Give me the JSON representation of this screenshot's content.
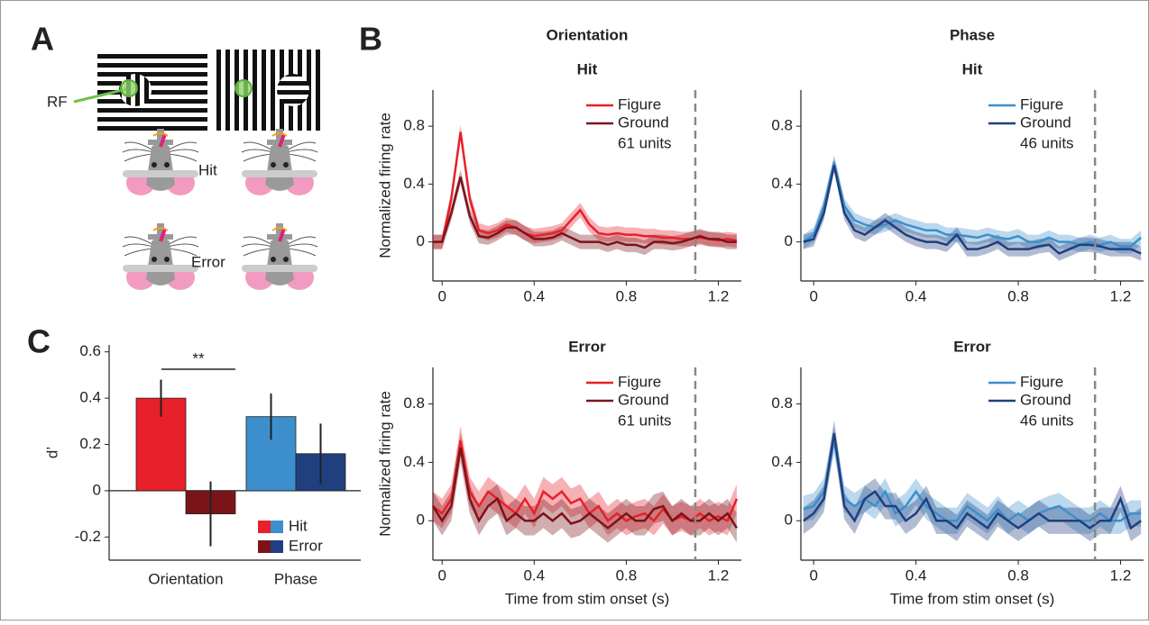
{
  "panel_labels": [
    "A",
    "B",
    "C"
  ],
  "panel_a": {
    "rf_label": "RF",
    "hit_label": "Hit",
    "error_label": "Error"
  },
  "chart_data": [
    {
      "type": "line",
      "super_title": "Orientation",
      "title": "Hit",
      "ylabel": "Normalized firing rate",
      "x": [
        -0.04,
        0,
        0.04,
        0.08,
        0.12,
        0.16,
        0.2,
        0.24,
        0.28,
        0.32,
        0.36,
        0.4,
        0.44,
        0.48,
        0.52,
        0.56,
        0.6,
        0.64,
        0.68,
        0.72,
        0.76,
        0.8,
        0.84,
        0.88,
        0.92,
        0.96,
        1.0,
        1.04,
        1.08,
        1.12,
        1.16,
        1.2,
        1.24,
        1.28
      ],
      "series": [
        {
          "name": "Figure",
          "color": "#e8202a",
          "error": 0.05,
          "values": [
            0,
            0,
            0.3,
            0.76,
            0.3,
            0.08,
            0.06,
            0.08,
            0.12,
            0.1,
            0.06,
            0.04,
            0.05,
            0.06,
            0.08,
            0.15,
            0.22,
            0.12,
            0.06,
            0.05,
            0.06,
            0.05,
            0.05,
            0.04,
            0.04,
            0.03,
            0.03,
            0.02,
            0.02,
            0.03,
            0.02,
            0.01,
            0.02,
            0.01
          ]
        },
        {
          "name": "Ground",
          "color": "#7b1419",
          "error": 0.05,
          "values": [
            0,
            0,
            0.2,
            0.45,
            0.18,
            0.04,
            0.03,
            0.06,
            0.1,
            0.1,
            0.06,
            0.02,
            0.02,
            0.03,
            0.06,
            0.03,
            0,
            0,
            0,
            -0.02,
            0,
            -0.02,
            -0.02,
            -0.04,
            0,
            0,
            -0.01,
            0,
            0.02,
            0.04,
            0.02,
            0.02,
            0,
            0
          ]
        }
      ],
      "annotation": "61 units",
      "legend": "upper right",
      "vline": 1.1,
      "xlim": [
        -0.04,
        1.3
      ],
      "xticks": [
        0,
        0.4,
        0.8,
        1.2
      ],
      "ylim": [
        -0.27,
        1.05
      ],
      "yticks": [
        0,
        0.4,
        0.8
      ]
    },
    {
      "type": "line",
      "super_title": "Phase",
      "title": "Hit",
      "x": [
        -0.04,
        0,
        0.04,
        0.08,
        0.12,
        0.16,
        0.2,
        0.24,
        0.28,
        0.32,
        0.36,
        0.4,
        0.44,
        0.48,
        0.52,
        0.56,
        0.6,
        0.64,
        0.68,
        0.72,
        0.76,
        0.8,
        0.84,
        0.88,
        0.92,
        0.96,
        1.0,
        1.04,
        1.08,
        1.12,
        1.16,
        1.2,
        1.24,
        1.28
      ],
      "series": [
        {
          "name": "Figure",
          "color": "#3c8fcc",
          "error": 0.05,
          "values": [
            0,
            0.05,
            0.25,
            0.55,
            0.25,
            0.15,
            0.12,
            0.1,
            0.12,
            0.15,
            0.12,
            0.1,
            0.08,
            0.08,
            0.05,
            0.05,
            0.04,
            0.03,
            0.05,
            0.03,
            0.02,
            0.04,
            0,
            0,
            0.03,
            0,
            0,
            -0.02,
            0,
            -0.02,
            0,
            -0.03,
            -0.03,
            0.03
          ]
        },
        {
          "name": "Ground",
          "color": "#1f3f7f",
          "error": 0.05,
          "values": [
            0,
            0.02,
            0.2,
            0.53,
            0.2,
            0.08,
            0.05,
            0.1,
            0.15,
            0.1,
            0.05,
            0.02,
            0,
            0,
            -0.02,
            0.05,
            -0.05,
            -0.05,
            -0.03,
            0,
            -0.05,
            -0.05,
            -0.05,
            -0.03,
            -0.02,
            -0.08,
            -0.05,
            -0.02,
            -0.02,
            -0.03,
            -0.05,
            -0.05,
            -0.05,
            -0.08
          ]
        }
      ],
      "annotation": "46 units",
      "legend": "upper right",
      "vline": 1.1,
      "xlim": [
        -0.05,
        1.29
      ],
      "xticks": [
        0,
        0.4,
        0.8,
        1.2
      ],
      "ylim": [
        -0.27,
        1.05
      ],
      "yticks": [
        0,
        0.4,
        0.8
      ]
    },
    {
      "type": "line",
      "title": "Error",
      "ylabel": "Normalized firing rate",
      "xlabel": "Time from stim onset (s)",
      "x": [
        -0.04,
        0,
        0.04,
        0.08,
        0.12,
        0.16,
        0.2,
        0.24,
        0.28,
        0.32,
        0.36,
        0.4,
        0.44,
        0.48,
        0.52,
        0.56,
        0.6,
        0.64,
        0.68,
        0.72,
        0.76,
        0.8,
        0.84,
        0.88,
        0.92,
        0.96,
        1.0,
        1.04,
        1.08,
        1.12,
        1.16,
        1.2,
        1.24,
        1.28
      ],
      "series": [
        {
          "name": "Figure",
          "color": "#e8202a",
          "error": 0.1,
          "values": [
            0.1,
            0.05,
            0.15,
            0.55,
            0.2,
            0.1,
            0.2,
            0.15,
            0.1,
            0.05,
            0.15,
            0.05,
            0.2,
            0.15,
            0.2,
            0.12,
            0.15,
            0.05,
            0.1,
            0,
            0.05,
            0,
            0.03,
            0.05,
            0,
            0.08,
            0,
            0.03,
            0,
            0.05,
            0,
            0.03,
            0,
            0.15
          ]
        },
        {
          "name": "Ground",
          "color": "#7b1419",
          "error": 0.1,
          "values": [
            0.1,
            0,
            0.1,
            0.5,
            0.15,
            0,
            0.1,
            0.15,
            0,
            0.05,
            0,
            0,
            0.05,
            0,
            0.05,
            -0.02,
            0,
            0.05,
            0,
            -0.05,
            0,
            0.05,
            0,
            0,
            0.08,
            0.1,
            0,
            0.05,
            0,
            0,
            0.05,
            0,
            0.05,
            -0.05
          ]
        }
      ],
      "annotation": "61 units",
      "legend": "upper right",
      "vline": 1.1,
      "xlim": [
        -0.04,
        1.3
      ],
      "xticks": [
        0,
        0.4,
        0.8,
        1.2
      ],
      "ylim": [
        -0.27,
        1.05
      ],
      "yticks": [
        0,
        0.4,
        0.8
      ]
    },
    {
      "type": "line",
      "title": "Error",
      "xlabel": "Time from stim onset (s)",
      "x": [
        -0.04,
        0,
        0.04,
        0.08,
        0.12,
        0.16,
        0.2,
        0.24,
        0.28,
        0.32,
        0.36,
        0.4,
        0.44,
        0.48,
        0.52,
        0.56,
        0.6,
        0.64,
        0.68,
        0.72,
        0.76,
        0.8,
        0.84,
        0.88,
        0.92,
        0.96,
        1.0,
        1.04,
        1.08,
        1.12,
        1.16,
        1.2,
        1.24,
        1.28
      ],
      "series": [
        {
          "name": "Figure",
          "color": "#3c8fcc",
          "error": 0.09,
          "values": [
            0.08,
            0.1,
            0.2,
            0.55,
            0.15,
            0.1,
            0.15,
            0.1,
            0.2,
            0.05,
            0.1,
            0.2,
            0.1,
            0.05,
            0,
            0,
            0.1,
            0.05,
            0,
            0.08,
            0,
            0.05,
            0,
            0.05,
            0.08,
            0.1,
            0.05,
            0,
            0,
            0.05,
            0,
            0,
            0.05,
            0.05
          ]
        },
        {
          "name": "Ground",
          "color": "#1f3f7f",
          "error": 0.09,
          "values": [
            0,
            0.05,
            0.15,
            0.6,
            0.1,
            0,
            0.15,
            0.2,
            0.1,
            0.1,
            0,
            0.05,
            0.15,
            0,
            0,
            -0.05,
            0.05,
            0,
            -0.05,
            0.05,
            0,
            -0.05,
            0,
            0.05,
            0,
            0,
            0,
            0,
            -0.05,
            0,
            0,
            0.15,
            -0.05,
            0
          ]
        }
      ],
      "annotation": "46 units",
      "legend": "upper right",
      "vline": 1.1,
      "xlim": [
        -0.05,
        1.29
      ],
      "xticks": [
        0,
        0.4,
        0.8,
        1.2
      ],
      "ylim": [
        -0.27,
        1.05
      ],
      "yticks": [
        0,
        0.4,
        0.8
      ]
    },
    {
      "type": "bar",
      "ylabel": "d’",
      "categories": [
        "Orientation",
        "Phase"
      ],
      "series": [
        {
          "name": "Hit",
          "colors": [
            "#e8202a",
            "#3c8fcc"
          ],
          "values": [
            0.4,
            0.32
          ],
          "errors": [
            0.08,
            0.1
          ]
        },
        {
          "name": "Error",
          "colors": [
            "#7b1419",
            "#1f3f7f"
          ],
          "values": [
            -0.1,
            0.16
          ],
          "errors": [
            0.14,
            0.13
          ]
        }
      ],
      "annotation": "**",
      "legend": "lower right",
      "ylim": [
        -0.3,
        0.63
      ],
      "yticks": [
        0.6,
        0.4,
        0.2,
        0,
        -0.2
      ]
    }
  ]
}
